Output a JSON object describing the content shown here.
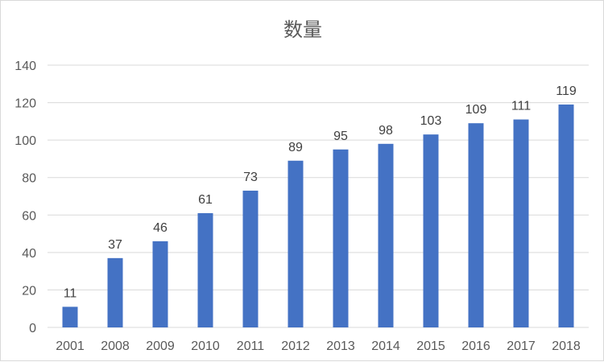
{
  "chart_data": {
    "type": "bar",
    "title": "数量",
    "xlabel": "",
    "ylabel": "",
    "categories": [
      "2001",
      "2008",
      "2009",
      "2010",
      "2011",
      "2012",
      "2013",
      "2014",
      "2015",
      "2016",
      "2017",
      "2018"
    ],
    "values": [
      11,
      37,
      46,
      61,
      73,
      89,
      95,
      98,
      103,
      109,
      111,
      119
    ],
    "ylim": [
      0,
      140
    ],
    "yticks": [
      0,
      20,
      40,
      60,
      80,
      100,
      120,
      140
    ],
    "grid": true,
    "legend": "none",
    "bar_color": "#4472c4",
    "data_labels": true
  }
}
